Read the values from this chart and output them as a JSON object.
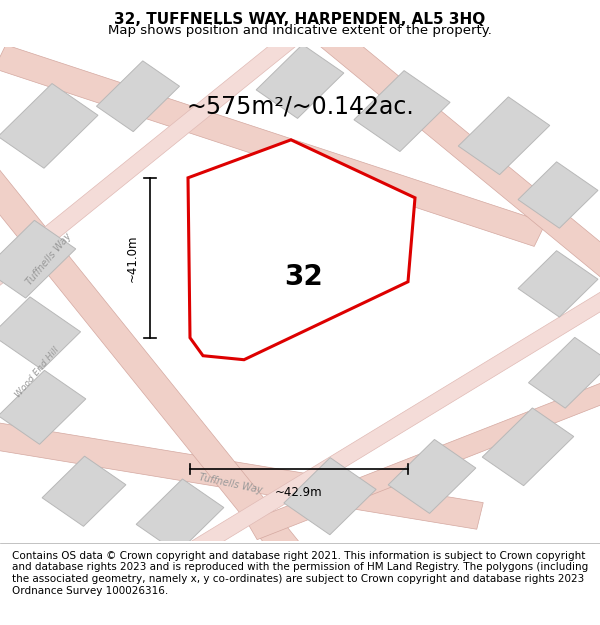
{
  "title": "32, TUFFNELLS WAY, HARPENDEN, AL5 3HQ",
  "subtitle": "Map shows position and indicative extent of the property.",
  "area_label": "~575m²/~0.142ac.",
  "plot_number": "32",
  "dim_vertical": "~41.0m",
  "dim_horizontal": "~42.9m",
  "footer_text": "Contains OS data © Crown copyright and database right 2021. This information is subject to Crown copyright and database rights 2023 and is reproduced with the permission of HM Land Registry. The polygons (including the associated geometry, namely x, y co-ordinates) are subject to Crown copyright and database rights 2023 Ordnance Survey 100026316.",
  "bg_color": "#f5f4f2",
  "road_color": "#f0d0c8",
  "road_edge_color": "#d4a8a0",
  "building_fill": "#d4d4d4",
  "building_edge": "#b8b8b8",
  "red_color": "#dd0000",
  "title_fontsize": 11,
  "subtitle_fontsize": 9.5,
  "area_label_fontsize": 17,
  "plot_number_fontsize": 20,
  "footer_fontsize": 7.5,
  "white": "#ffffff",
  "black": "#000000",
  "gray_text": "#999999"
}
